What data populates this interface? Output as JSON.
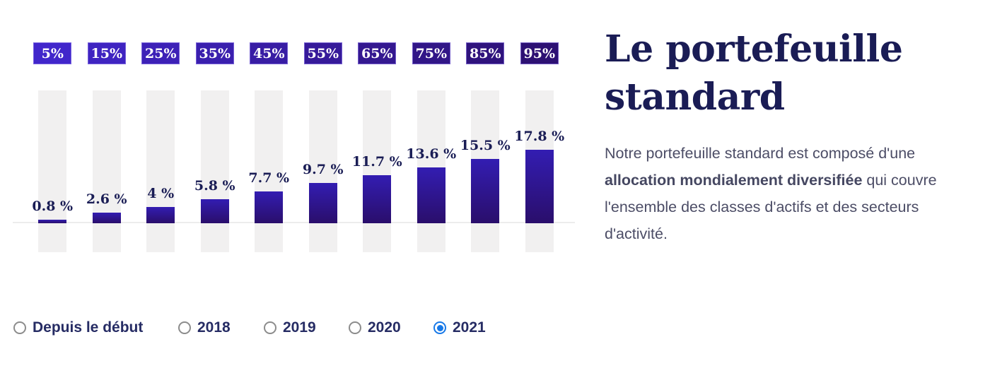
{
  "chart_data": {
    "type": "bar",
    "title": "",
    "xlabel": "",
    "ylabel": "",
    "unit": "%",
    "ylim": [
      0,
      20
    ],
    "grid": false,
    "legend": false,
    "categories": [
      "5%",
      "15%",
      "25%",
      "35%",
      "45%",
      "55%",
      "65%",
      "75%",
      "85%",
      "95%"
    ],
    "values": [
      0.8,
      2.6,
      4,
      5.8,
      7.7,
      9.7,
      11.7,
      13.6,
      15.5,
      17.8
    ],
    "value_labels": [
      "0.8 %",
      "2.6 %",
      "4 %",
      "5.8 %",
      "7.7 %",
      "9.7 %",
      "11.7 %",
      "13.6 %",
      "15.5 %",
      "17.8 %"
    ],
    "badge_colors": [
      "#4126CB",
      "#3F24C1",
      "#3D21B7",
      "#3A1FAE",
      "#381DA4",
      "#361A9A",
      "#341890",
      "#311687",
      "#2F137D",
      "#2D1173"
    ],
    "badge_text_color": "#FFFFFF",
    "bar_gradient_top": "#331DB2",
    "bar_gradient_bottom": "#2A0E6B",
    "track_color": "#F1F0F0",
    "baseline_color": "#ECECEC",
    "value_label_color": "#1A1D55"
  },
  "period_selector": {
    "options": [
      {
        "label": "Depuis le début",
        "selected": false
      },
      {
        "label": "2018",
        "selected": false
      },
      {
        "label": "2019",
        "selected": false
      },
      {
        "label": "2020",
        "selected": false
      },
      {
        "label": "2021",
        "selected": true
      }
    ],
    "selected_color": "#1779E8",
    "unselected_border_color": "#8C8C8C",
    "label_color": "#262C64"
  },
  "side": {
    "title": "Le portefeuille standard",
    "description_before": "Notre portefeuille standard est composé d'une ",
    "description_bold": "allocation mondialement diversifiée",
    "description_after": " qui couvre l'ensemble des classes d'actifs et des secteurs d'activité.",
    "title_color": "#1A1C55",
    "text_color": "#4C4D66"
  }
}
